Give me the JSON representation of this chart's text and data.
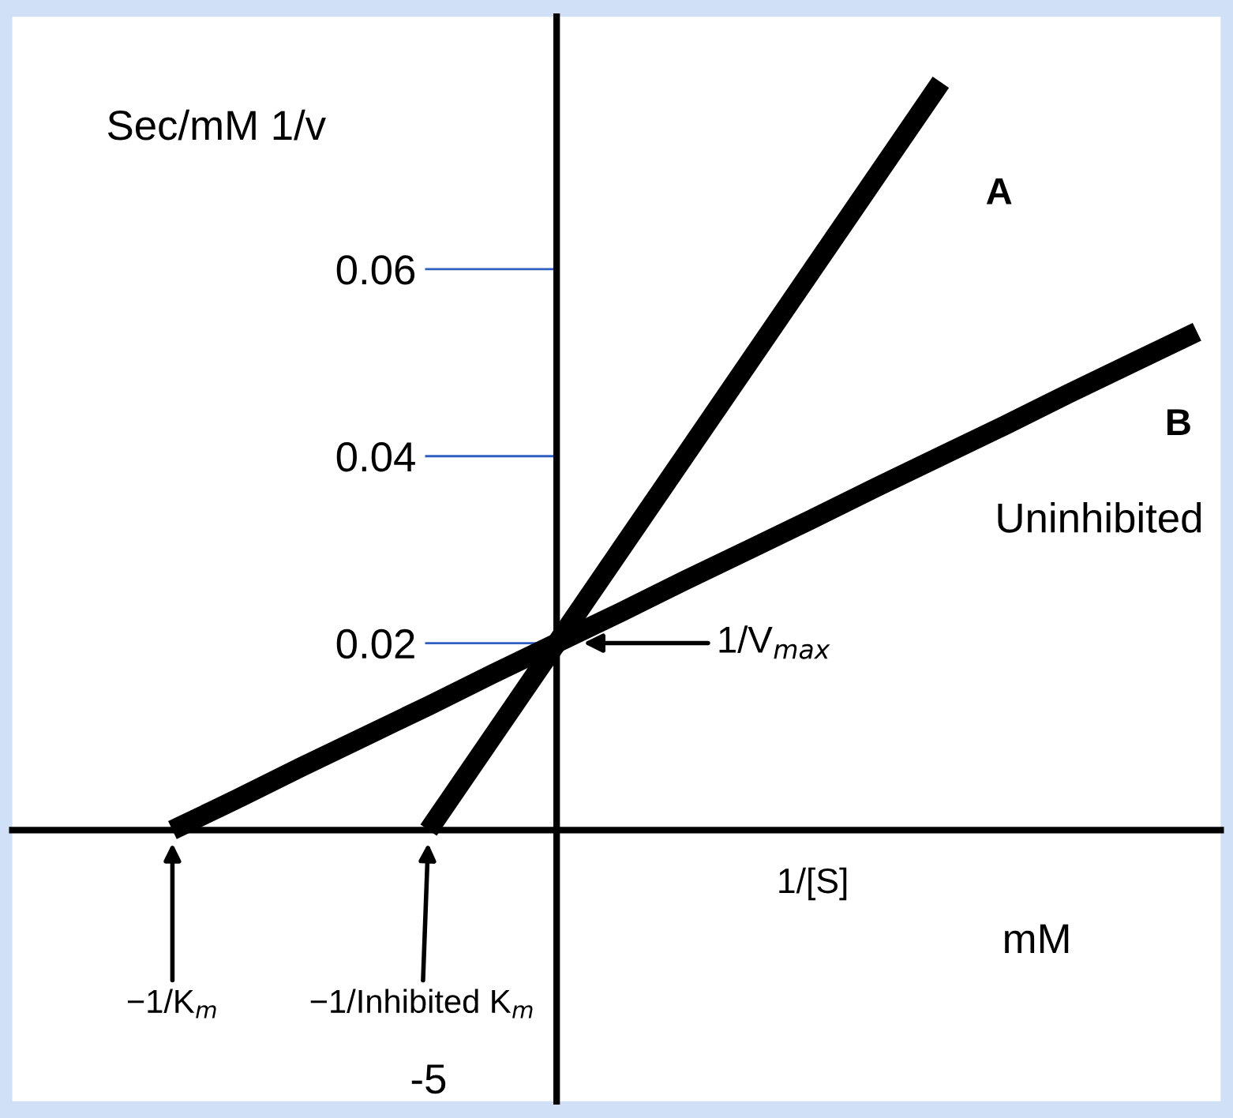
{
  "chart_data": {
    "type": "line",
    "xlabel": "1/[S]",
    "ylabel": "Sec/mM 1/v",
    "categories": [
      null,
      null,
      null,
      null,
      null,
      null,
      null,
      null,
      null,
      null,
      null,
      null,
      null,
      null,
      null,
      null,
      null
    ],
    "series": [
      {
        "name": "A",
        "color": "#000000",
        "values": [
          null,
          null,
          null,
          null,
          0,
          0.01,
          0.02,
          0.03,
          0.04,
          0.05,
          0.06,
          0.07,
          0.08,
          null,
          null,
          null,
          null
        ]
      },
      {
        "name": "B",
        "color": "#000000",
        "values": [
          0,
          0.0033,
          0.0067,
          0.01,
          0.0133,
          0.0167,
          0.02,
          0.0233,
          0.0267,
          0.03,
          0.0333,
          0.0367,
          0.04,
          0.0433,
          0.0467,
          0.05,
          0.0533
        ]
      }
    ],
    "ylim": [
      -0.029,
      0.087
    ],
    "yticks": [
      0.02,
      0.04,
      0.06
    ],
    "annotations": [
      "1/V$_{max}$",
      "−1/K$_{m}$",
      "−1/Inhibited K$_{m}$",
      "Uninhibited",
      "mM",
      "-5"
    ],
    "grid": false,
    "legend": false,
    "marker": "none",
    "line_style": "solid"
  }
}
